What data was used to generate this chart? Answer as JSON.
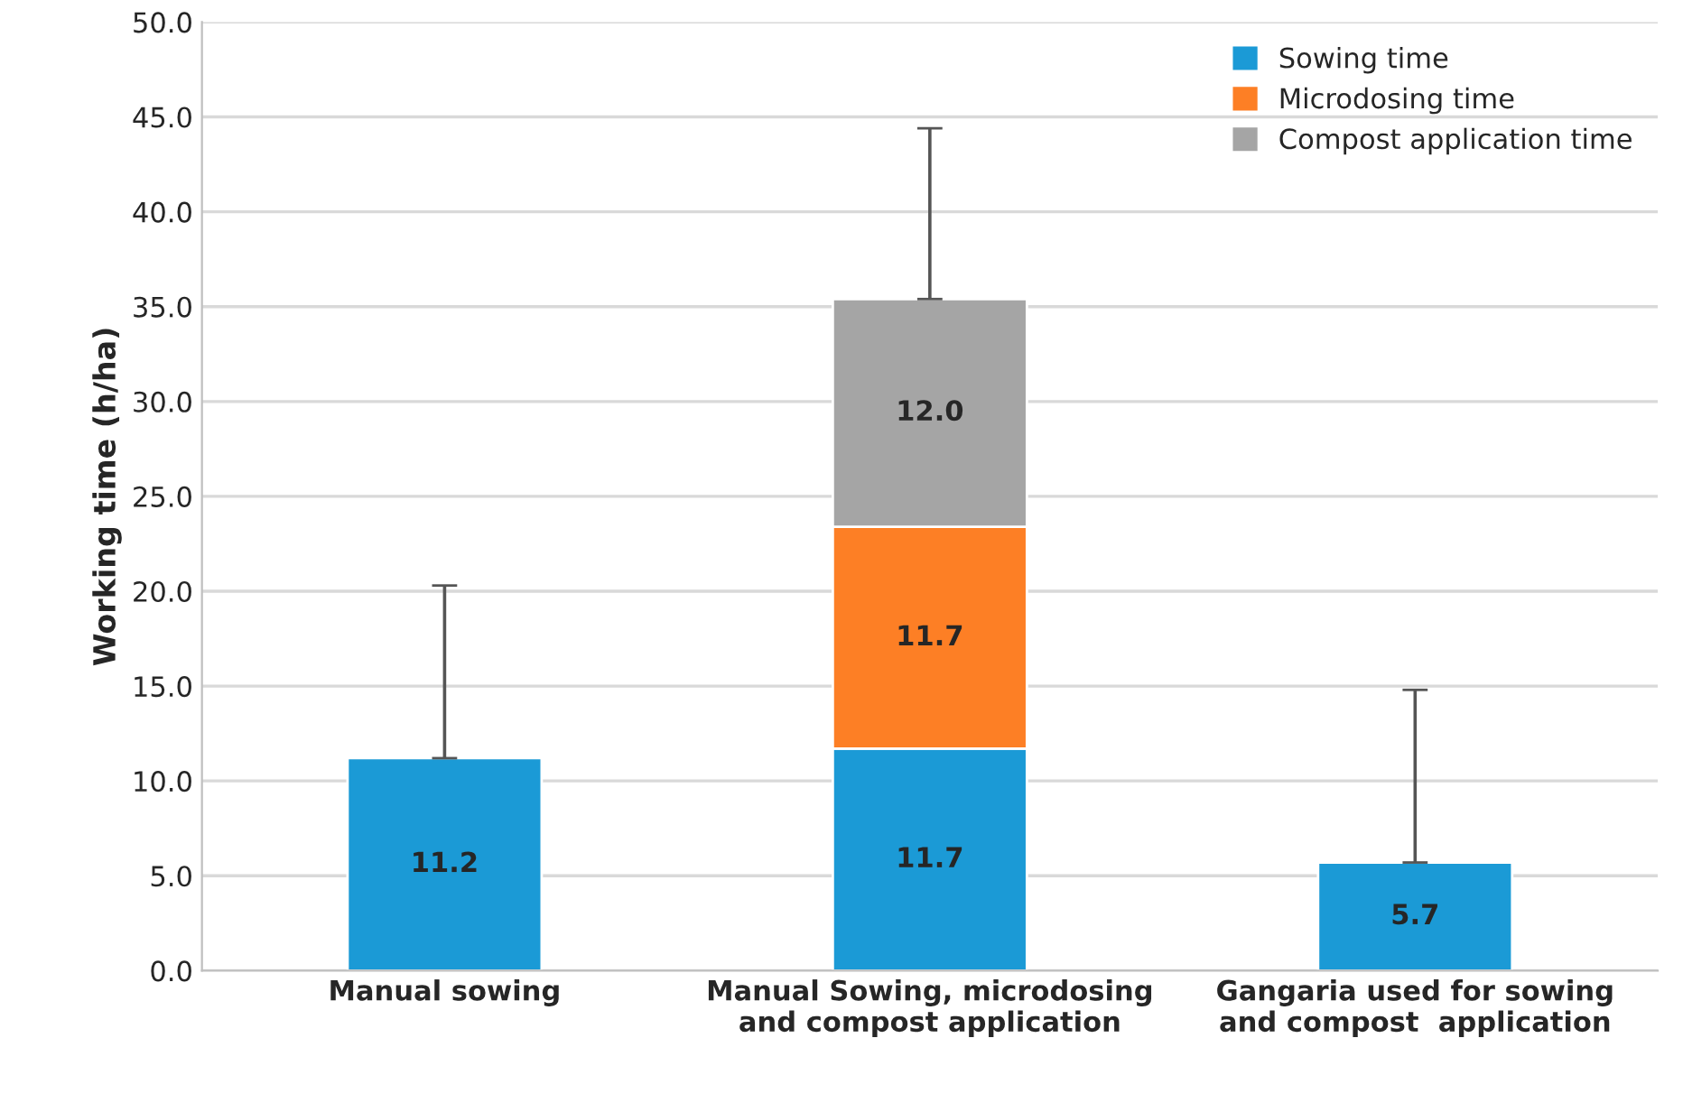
{
  "chart_data": {
    "type": "bar",
    "stacked": true,
    "ylabel": "Working time (h/ha)",
    "categories": [
      "Manual sowing",
      "Manual Sowing, microdosing\nand compost application",
      "Gangaria used for sowing\nand compost  application"
    ],
    "series": [
      {
        "name": "Sowing time",
        "color": "#1b9ad6",
        "values": [
          11.2,
          11.7,
          5.7
        ],
        "value_labels": [
          "11.2",
          "11.7",
          "5.7"
        ],
        "errors": [
          [
            11.2,
            20.3
          ],
          null,
          [
            5.7,
            14.8
          ]
        ]
      },
      {
        "name": "Microdosing time",
        "color": "#fd7f25",
        "values": [
          null,
          11.7,
          null
        ],
        "value_labels": [
          null,
          "11.7",
          null
        ]
      },
      {
        "name": "Compost application time",
        "color": "#a5a5a5",
        "values": [
          null,
          12.0,
          null
        ],
        "value_labels": [
          null,
          "12.0",
          null
        ],
        "errors": [
          null,
          [
            35.4,
            44.4
          ],
          null
        ]
      }
    ],
    "ylim": [
      0,
      50
    ],
    "yticks": [
      {
        "value": 0,
        "label": "0.0"
      },
      {
        "value": 5,
        "label": "5.0"
      },
      {
        "value": 10,
        "label": "10.0"
      },
      {
        "value": 15,
        "label": "15.0"
      },
      {
        "value": 20,
        "label": "20.0"
      },
      {
        "value": 25,
        "label": "25.0"
      },
      {
        "value": 30,
        "label": "30.0"
      },
      {
        "value": 35,
        "label": "35.0"
      },
      {
        "value": 40,
        "label": "40.0"
      },
      {
        "value": 45,
        "label": "45.0"
      },
      {
        "value": 50,
        "label": "50.0"
      }
    ],
    "grid": "y",
    "legend": "top right"
  }
}
